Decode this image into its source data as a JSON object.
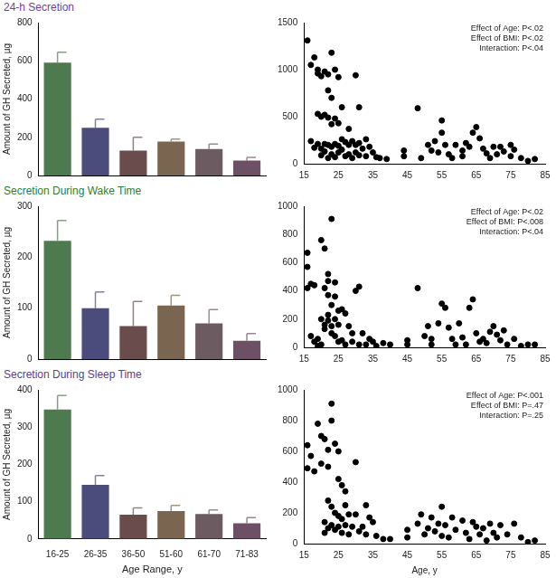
{
  "chart_data": [
    {
      "type": "bar",
      "title": "24-h Secretion",
      "y_label": "Amount of GH Secreted, µg",
      "categories": [
        "16-25",
        "26-35",
        "36-50",
        "51-60",
        "61-70",
        "71-83"
      ],
      "values": [
        590,
        250,
        130,
        178,
        138,
        78
      ],
      "errors": [
        55,
        45,
        70,
        12,
        27,
        17
      ],
      "colors": [
        "#4e7a4f",
        "#4b4c7c",
        "#6b4c4c",
        "#7a6650",
        "#6d5b62",
        "#6e5066"
      ],
      "ylim": [
        0,
        800
      ],
      "yticks": [
        0,
        200,
        400,
        600,
        800
      ],
      "grid": false,
      "tick_labels": "y"
    },
    {
      "type": "scatter",
      "color": "#000000",
      "annotations": [
        "Effect of Age: P<.02",
        "Effect of BMI: P<.02",
        "Interaction: P<.04"
      ],
      "x": [
        16,
        17,
        18,
        19,
        19,
        20,
        21,
        22,
        23,
        24,
        25,
        22,
        23,
        21,
        19,
        20,
        22,
        24,
        25,
        23,
        26,
        28,
        30,
        31,
        17,
        18,
        19,
        20,
        20,
        21,
        21,
        22,
        22,
        23,
        23,
        24,
        24,
        25,
        25,
        26,
        26,
        27,
        27,
        28,
        28,
        29,
        29,
        30,
        30,
        31,
        31,
        32,
        33,
        33,
        34,
        35,
        36,
        37,
        39,
        44,
        44,
        48,
        49,
        51,
        52,
        53,
        54,
        55,
        55,
        56,
        57,
        58,
        59,
        61,
        61,
        62,
        63,
        64,
        65,
        66,
        67,
        68,
        69,
        70,
        71,
        72,
        73,
        75,
        75,
        76,
        78,
        80,
        82
      ],
      "values": [
        1310,
        1050,
        1130,
        960,
        1000,
        930,
        980,
        950,
        1180,
        1000,
        920,
        780,
        700,
        520,
        530,
        500,
        490,
        480,
        430,
        420,
        600,
        370,
        940,
        600,
        240,
        170,
        210,
        160,
        90,
        210,
        130,
        200,
        60,
        180,
        100,
        210,
        70,
        190,
        120,
        260,
        150,
        230,
        80,
        200,
        100,
        240,
        60,
        200,
        120,
        220,
        90,
        160,
        260,
        80,
        180,
        120,
        70,
        60,
        50,
        80,
        140,
        590,
        60,
        200,
        140,
        240,
        120,
        460,
        330,
        200,
        100,
        60,
        200,
        140,
        80,
        220,
        180,
        330,
        390,
        270,
        160,
        110,
        60,
        180,
        100,
        180,
        130,
        200,
        80,
        150,
        60,
        30,
        50
      ],
      "xlim": [
        15,
        85
      ],
      "xticks": [
        15,
        25,
        35,
        45,
        55,
        65,
        75,
        85
      ],
      "ylim": [
        0,
        1500
      ],
      "yticks": [
        0,
        500,
        1000,
        1500
      ],
      "grid": false
    },
    {
      "type": "bar",
      "title": "Secretion During Wake Time",
      "y_label": "Amount of GH Secreted, µg",
      "categories": [
        "16-25",
        "26-35",
        "36-50",
        "51-60",
        "61-70",
        "71-83"
      ],
      "values": [
        232,
        100,
        65,
        105,
        70,
        36
      ],
      "errors": [
        40,
        32,
        48,
        20,
        27,
        14
      ],
      "colors": [
        "#4e7a4f",
        "#4b4c7c",
        "#6b4c4c",
        "#7a6650",
        "#6d5b62",
        "#6e5066"
      ],
      "ylim": [
        0,
        300
      ],
      "yticks": [
        0,
        100,
        200,
        300
      ],
      "grid": false,
      "tick_labels": "y"
    },
    {
      "type": "scatter",
      "color": "#000000",
      "annotations": [
        "Effect of Age: P<.02",
        "Effect of BMI: P<.008",
        "Interaction: P<.04"
      ],
      "x": [
        16,
        16,
        17,
        18,
        16,
        20,
        21,
        22,
        22,
        24,
        23,
        21,
        22,
        23,
        24,
        25,
        26,
        20,
        21,
        21,
        22,
        22,
        23,
        23,
        24,
        24,
        25,
        25,
        26,
        27,
        27,
        28,
        29,
        29,
        30,
        31,
        31,
        32,
        33,
        34,
        35,
        36,
        38,
        40,
        17,
        18,
        19,
        19,
        20,
        45,
        45,
        48,
        50,
        51,
        52,
        52,
        54,
        55,
        56,
        57,
        58,
        59,
        60,
        61,
        62,
        63,
        64,
        65,
        66,
        67,
        68,
        69,
        70,
        71,
        72,
        73,
        74,
        76,
        78,
        80,
        82
      ],
      "values": [
        670,
        570,
        450,
        440,
        420,
        760,
        700,
        520,
        470,
        460,
        910,
        420,
        370,
        300,
        360,
        260,
        270,
        200,
        160,
        130,
        230,
        190,
        150,
        100,
        80,
        200,
        40,
        160,
        50,
        240,
        20,
        150,
        100,
        40,
        400,
        430,
        20,
        100,
        20,
        60,
        40,
        10,
        30,
        20,
        80,
        40,
        60,
        10,
        20,
        20,
        50,
        420,
        80,
        150,
        60,
        20,
        170,
        310,
        280,
        140,
        60,
        20,
        170,
        70,
        20,
        280,
        340,
        100,
        40,
        60,
        30,
        110,
        150,
        90,
        50,
        120,
        20,
        60,
        10,
        20,
        20
      ],
      "xlim": [
        15,
        85
      ],
      "xticks": [
        15,
        25,
        35,
        45,
        55,
        65,
        75,
        85
      ],
      "ylim": [
        0,
        1000
      ],
      "yticks": [
        0,
        200,
        400,
        600,
        800,
        1000
      ],
      "grid": false
    },
    {
      "type": "bar",
      "title": "Secretion During Sleep Time",
      "y_label": "Amount of GH Secreted, µg",
      "x_label": "Age Range, y",
      "categories": [
        "16-25",
        "26-35",
        "36-50",
        "51-60",
        "61-70",
        "71-83"
      ],
      "values": [
        347,
        145,
        65,
        75,
        67,
        42
      ],
      "errors": [
        38,
        25,
        18,
        15,
        11,
        15
      ],
      "colors": [
        "#4e7a4f",
        "#4b4c7c",
        "#6b4c4c",
        "#7a6650",
        "#6d5b62",
        "#6e5066"
      ],
      "ylim": [
        0,
        400
      ],
      "yticks": [
        0,
        100,
        200,
        300,
        400
      ],
      "grid": false
    },
    {
      "type": "scatter",
      "color": "#000000",
      "x_label": "Age, y",
      "annotations": [
        "Effect of Age: P<.001",
        "Effect of BMI: P=.47",
        "Interaction: P=.25"
      ],
      "x": [
        16,
        16,
        17,
        18,
        19,
        20,
        20,
        21,
        22,
        22,
        23,
        23,
        24,
        25,
        25,
        26,
        27,
        21,
        21,
        22,
        22,
        23,
        23,
        24,
        24,
        25,
        25,
        26,
        26,
        27,
        27,
        28,
        28,
        29,
        30,
        30,
        31,
        32,
        33,
        33,
        34,
        35,
        36,
        38,
        40,
        45,
        45,
        48,
        49,
        50,
        51,
        52,
        53,
        54,
        55,
        55,
        56,
        57,
        58,
        59,
        61,
        62,
        63,
        64,
        65,
        66,
        67,
        68,
        69,
        70,
        71,
        72,
        74,
        76,
        78,
        80,
        82
      ],
      "values": [
        640,
        490,
        570,
        470,
        780,
        700,
        520,
        680,
        610,
        500,
        910,
        800,
        650,
        600,
        420,
        380,
        340,
        140,
        70,
        100,
        280,
        240,
        120,
        200,
        90,
        180,
        110,
        160,
        70,
        250,
        120,
        190,
        60,
        110,
        530,
        190,
        80,
        110,
        250,
        60,
        170,
        140,
        50,
        30,
        30,
        90,
        40,
        130,
        190,
        60,
        100,
        170,
        80,
        130,
        240,
        50,
        120,
        40,
        170,
        90,
        150,
        70,
        30,
        140,
        110,
        60,
        100,
        20,
        130,
        70,
        40,
        120,
        60,
        130,
        40,
        10,
        20
      ],
      "xlim": [
        15,
        85
      ],
      "xticks": [
        15,
        25,
        35,
        45,
        55,
        65,
        75,
        85
      ],
      "ylim": [
        0,
        1000
      ],
      "yticks": [
        0,
        200,
        400,
        600,
        800,
        1000
      ],
      "grid": false
    }
  ]
}
